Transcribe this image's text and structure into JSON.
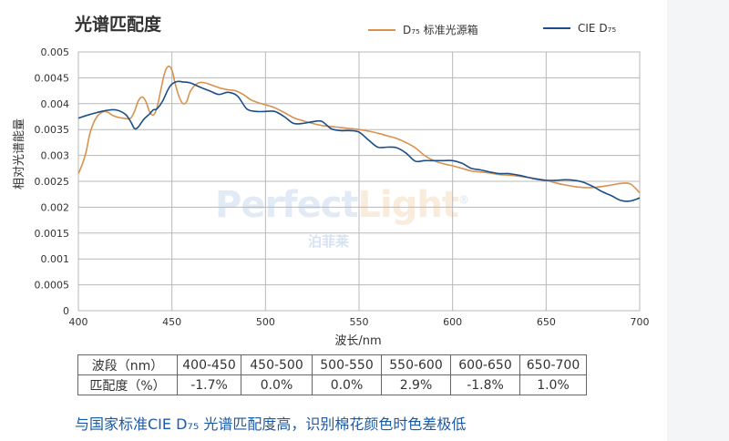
{
  "title": "光谱匹配度",
  "ylabel": "相对光谱能量",
  "watermark": {
    "brand_main": "Perfect",
    "brand_accent": "Light",
    "registered": "®",
    "brand_cn": "泊菲莱"
  },
  "colors": {
    "d75": "#d8924e",
    "cie": "#1c4e8a",
    "grid": "#b8b8b8",
    "footer": "#1a5aa8"
  },
  "table": {
    "row_header": [
      "波段（nm）",
      "匹配度（%）"
    ],
    "bands": [
      "400-450",
      "450-500",
      "500-550",
      "550-600",
      "600-650",
      "650-700"
    ],
    "match": [
      "-1.7%",
      "0.0%",
      "0.0%",
      "2.9%",
      "-1.8%",
      "1.0%"
    ]
  },
  "footer": "与国家标准CIE D₇₅ 光谱匹配度高，识别棉花颜色时色差极低",
  "chart_data": {
    "type": "line",
    "xlabel": "波长/nm",
    "ylabel": "相对光谱能量",
    "xlim": [
      400,
      700
    ],
    "ylim": [
      0,
      0.005
    ],
    "xticks": [
      "400",
      "450",
      "500",
      "550",
      "600",
      "650",
      "700"
    ],
    "yticks": [
      "0",
      "0.0005",
      "0.001",
      "0.0015",
      "0.002",
      "0.0025",
      "0.003",
      "0.0035",
      "0.004",
      "0.0045",
      "0.005"
    ],
    "grid": true,
    "legend_position": "top-right",
    "series": [
      {
        "name": "D₇₅ 标准光源箱",
        "x": [
          400,
          402,
          404,
          406,
          408,
          410,
          412,
          414,
          416,
          418,
          420,
          422,
          424,
          426,
          428,
          430,
          432,
          434,
          436,
          438,
          440,
          442,
          444,
          446,
          448,
          450,
          452,
          454,
          456,
          458,
          460,
          464,
          468,
          472,
          476,
          480,
          484,
          488,
          492,
          496,
          500,
          505,
          510,
          515,
          520,
          525,
          530,
          535,
          540,
          545,
          550,
          555,
          560,
          565,
          570,
          575,
          580,
          585,
          590,
          595,
          600,
          605,
          610,
          615,
          620,
          625,
          630,
          635,
          640,
          645,
          650,
          655,
          660,
          665,
          670,
          675,
          680,
          685,
          690,
          695,
          700
        ],
        "y": [
          0.00265,
          0.00282,
          0.00305,
          0.0034,
          0.00362,
          0.00375,
          0.00382,
          0.00385,
          0.00383,
          0.00378,
          0.00375,
          0.00373,
          0.00372,
          0.00371,
          0.00372,
          0.00385,
          0.00405,
          0.00413,
          0.00405,
          0.00385,
          0.00378,
          0.00392,
          0.00425,
          0.00458,
          0.00472,
          0.00465,
          0.00435,
          0.00412,
          0.004,
          0.00405,
          0.00425,
          0.0044,
          0.0044,
          0.00435,
          0.0043,
          0.00427,
          0.00425,
          0.00418,
          0.00408,
          0.00402,
          0.00398,
          0.00392,
          0.00383,
          0.00373,
          0.00367,
          0.00362,
          0.00358,
          0.00356,
          0.00354,
          0.00352,
          0.0035,
          0.00347,
          0.00343,
          0.00338,
          0.00333,
          0.00325,
          0.00315,
          0.003,
          0.0029,
          0.00284,
          0.0028,
          0.00275,
          0.0027,
          0.00268,
          0.00266,
          0.00263,
          0.00262,
          0.0026,
          0.00258,
          0.00255,
          0.00252,
          0.00247,
          0.00243,
          0.0024,
          0.00238,
          0.00238,
          0.0024,
          0.00243,
          0.00246,
          0.00245,
          0.00228
        ]
      },
      {
        "name": "CIE D₇₅",
        "x": [
          400,
          405,
          410,
          415,
          420,
          425,
          428,
          430,
          432,
          435,
          438,
          440,
          442,
          445,
          448,
          450,
          453,
          456,
          460,
          465,
          470,
          475,
          480,
          485,
          490,
          495,
          500,
          505,
          510,
          515,
          520,
          525,
          530,
          535,
          540,
          545,
          550,
          555,
          560,
          565,
          570,
          575,
          580,
          585,
          590,
          595,
          600,
          605,
          610,
          615,
          620,
          625,
          630,
          635,
          640,
          645,
          650,
          655,
          660,
          665,
          670,
          675,
          680,
          685,
          690,
          695,
          700
        ],
        "y": [
          0.00372,
          0.00378,
          0.00383,
          0.00387,
          0.00388,
          0.0038,
          0.00365,
          0.00352,
          0.00355,
          0.0037,
          0.0038,
          0.00388,
          0.0039,
          0.00405,
          0.00428,
          0.00438,
          0.00443,
          0.00442,
          0.0044,
          0.00432,
          0.00425,
          0.00418,
          0.00422,
          0.00415,
          0.0039,
          0.00385,
          0.00385,
          0.00385,
          0.00375,
          0.00362,
          0.00362,
          0.00365,
          0.00366,
          0.00352,
          0.00348,
          0.00348,
          0.00345,
          0.0033,
          0.00316,
          0.00316,
          0.00315,
          0.00305,
          0.00289,
          0.0029,
          0.0029,
          0.0029,
          0.0029,
          0.00285,
          0.00275,
          0.00272,
          0.00268,
          0.00265,
          0.00265,
          0.00262,
          0.00258,
          0.00254,
          0.00252,
          0.00252,
          0.00253,
          0.00252,
          0.00248,
          0.0024,
          0.0023,
          0.00222,
          0.00213,
          0.00212,
          0.00218
        ]
      }
    ]
  }
}
